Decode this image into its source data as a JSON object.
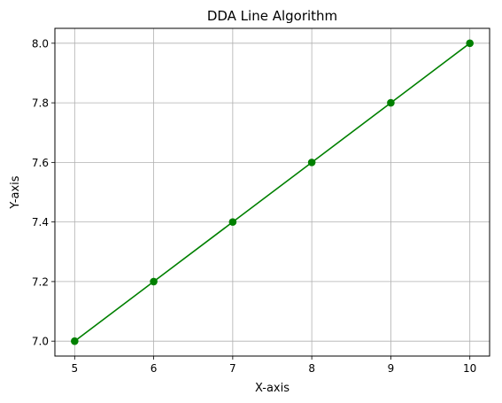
{
  "chart_data": {
    "type": "line",
    "title": "DDA Line Algorithm",
    "xlabel": "X-axis",
    "ylabel": "Y-axis",
    "xlim": [
      4.75,
      10.25
    ],
    "ylim": [
      6.95,
      8.05
    ],
    "xticks": [
      5,
      6,
      7,
      8,
      9,
      10
    ],
    "xtick_labels": [
      "5",
      "6",
      "7",
      "8",
      "9",
      "10"
    ],
    "yticks": [
      7.0,
      7.2,
      7.4,
      7.6,
      7.8,
      8.0
    ],
    "ytick_labels": [
      "7.0",
      "7.2",
      "7.4",
      "7.6",
      "7.8",
      "8.0"
    ],
    "grid": true,
    "series": [
      {
        "color": "#008000",
        "marker": "circle",
        "x": [
          5,
          6,
          7,
          8,
          9,
          10
        ],
        "y": [
          7.0,
          7.2,
          7.4,
          7.6,
          7.8,
          8.0
        ]
      }
    ]
  }
}
